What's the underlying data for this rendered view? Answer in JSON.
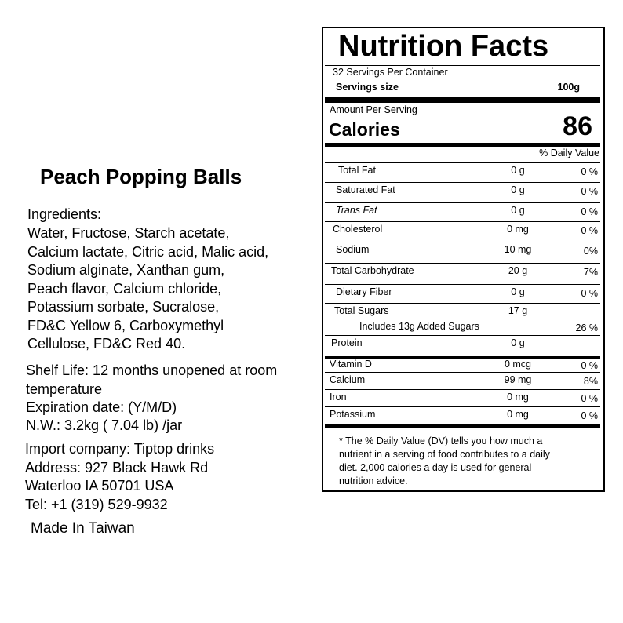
{
  "product": {
    "title": "Peach Popping Balls",
    "ingredients_heading": "Ingredients:",
    "ingredients_lines": [
      "Water, Fructose, Starch acetate,",
      "Calcium lactate, Citric acid, Malic acid,",
      "Sodium alginate, Xanthan gum,",
      "Peach flavor, Calcium chloride,",
      "Potassium sorbate, Sucralose,",
      "FD&C Yellow 6, Carboxymethyl",
      "Cellulose, FD&C Red 40."
    ],
    "shelf_life_lines": [
      "Shelf Life: 12 months unopened at room",
      "temperature"
    ],
    "expiration": "Expiration date: (Y/M/D)",
    "net_weight": "N.W.: 3.2kg ( 7.04 lb) /jar",
    "import_lines": [
      "Import company: Tiptop drinks",
      "Address: 927 Black Hawk Rd",
      "Waterloo IA 50701 USA",
      "Tel: +1 (319) 529-9932"
    ],
    "origin": "Made In Taiwan"
  },
  "nutrition": {
    "title": "Nutrition Facts",
    "servings_per_container": "32 Servings Per Container",
    "serving_size_label": "Servings size",
    "serving_size": "100g",
    "amount_per_serving": "Amount Per Serving",
    "calories_label": "Calories",
    "calories": 86,
    "daily_value_header": "% Daily Value",
    "rows": [
      {
        "name": "Total Fat",
        "amount": "0 g",
        "dv": "0 %"
      },
      {
        "name": "Saturated Fat",
        "amount": "0 g",
        "dv": "0 %"
      },
      {
        "name": "Trans Fat",
        "amount": "0 g",
        "dv": "0 %"
      },
      {
        "name": "Cholesterol",
        "amount": "0 mg",
        "dv": "0 %"
      },
      {
        "name": "Sodium",
        "amount": "10 mg",
        "dv": "0%"
      },
      {
        "name": "Total Carbohydrate",
        "amount": "20 g",
        "dv": "7%"
      },
      {
        "name": "Dietary Fiber",
        "amount": "0 g",
        "dv": "0 %"
      },
      {
        "name": "Total Sugars",
        "amount": "17 g"
      },
      {
        "name": "Includes 13g Added Sugars",
        "dv": "26 %"
      },
      {
        "name": "Protein",
        "amount": "0 g"
      },
      {
        "name": "Vitamin D",
        "amount": "0 mcg",
        "dv": "0 %"
      },
      {
        "name": "Calcium",
        "amount": "99 mg",
        "dv": "8%"
      },
      {
        "name": "Iron",
        "amount": "0 mg",
        "dv": "0 %"
      },
      {
        "name": "Potassium",
        "amount": "0 mg",
        "dv": "0 %"
      }
    ],
    "footnote_lines": [
      "* The % Daily Value (DV) tells you how much a",
      "nutrient in a serving of food contributes to a daily",
      "diet. 2,000 calories a day is used for general",
      "nutrition advice."
    ]
  }
}
